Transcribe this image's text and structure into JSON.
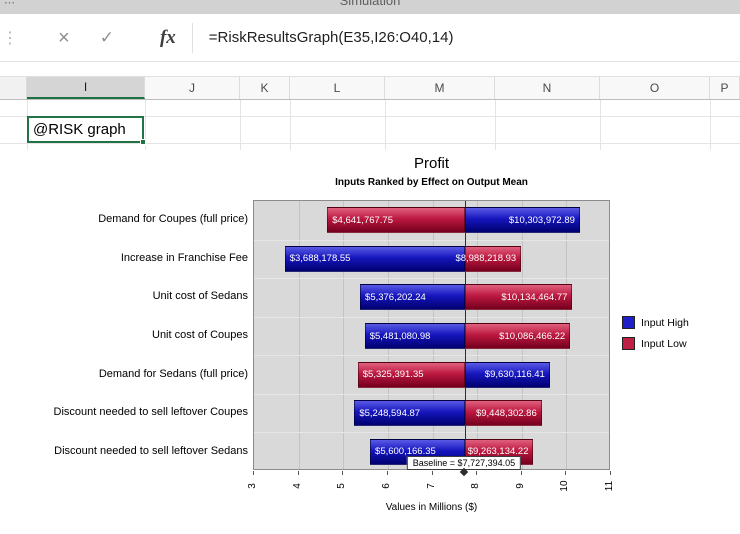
{
  "titlebar": {
    "label": "Simulation"
  },
  "formula_bar": {
    "cancel_icon": "×",
    "enter_icon": "✓",
    "fx_label": "fx",
    "formula": "=RiskResultsGraph(E35,I26:O40,14)"
  },
  "columns": {
    "selected": "I",
    "headers": [
      "I",
      "J",
      "K",
      "L",
      "M",
      "N",
      "O",
      "P"
    ]
  },
  "cell": {
    "text": "@RISK graph"
  },
  "chart_data": {
    "type": "bar",
    "subtype": "tornado",
    "title": "Profit",
    "subtitle": "Inputs Ranked by Effect on Output Mean",
    "xlabel": "Values in Millions ($)",
    "xlim": [
      3,
      11
    ],
    "x_ticks": [
      3,
      4,
      5,
      6,
      7,
      8,
      9,
      10,
      11
    ],
    "baseline_value": 7.72739405,
    "baseline_label": "Baseline = $7,727,394.05",
    "legend": [
      {
        "id": "high",
        "label": "Input High",
        "color": "#2020c8"
      },
      {
        "id": "low",
        "label": "Input Low",
        "color": "#c01f45"
      }
    ],
    "rows": [
      {
        "category": "Demand for Coupes (full price)",
        "left": {
          "value": 4.64176775,
          "label": "$4,641,767.75",
          "series": "low"
        },
        "right": {
          "value": 10.30397289,
          "label": "$10,303,972.89",
          "series": "high"
        }
      },
      {
        "category": "Increase in Franchise Fee",
        "left": {
          "value": 3.68817855,
          "label": "$3,688,178.55",
          "series": "high"
        },
        "right": {
          "value": 8.98821893,
          "label": "$8,988,218.93",
          "series": "low"
        }
      },
      {
        "category": "Unit cost of Sedans",
        "left": {
          "value": 5.37620224,
          "label": "$5,376,202.24",
          "series": "high"
        },
        "right": {
          "value": 10.13446477,
          "label": "$10,134,464.77",
          "series": "low"
        }
      },
      {
        "category": "Unit cost of Coupes",
        "left": {
          "value": 5.48108098,
          "label": "$5,481,080.98",
          "series": "high"
        },
        "right": {
          "value": 10.08646622,
          "label": "$10,086,466.22",
          "series": "low"
        }
      },
      {
        "category": "Demand for Sedans (full price)",
        "left": {
          "value": 5.32539135,
          "label": "$5,325,391.35",
          "series": "low"
        },
        "right": {
          "value": 9.63011641,
          "label": "$9,630,116.41",
          "series": "high"
        }
      },
      {
        "category": "Discount needed to sell leftover Coupes",
        "left": {
          "value": 5.24859487,
          "label": "$5,248,594.87",
          "series": "high"
        },
        "right": {
          "value": 9.44830286,
          "label": "$9,448,302.86",
          "series": "low"
        }
      },
      {
        "category": "Discount needed to sell leftover Sedans",
        "left": {
          "value": 5.60016635,
          "label": "$5,600,166.35",
          "series": "high"
        },
        "right": {
          "value": 9.26313422,
          "label": "$9,263,134.22",
          "series": "low"
        }
      }
    ]
  }
}
